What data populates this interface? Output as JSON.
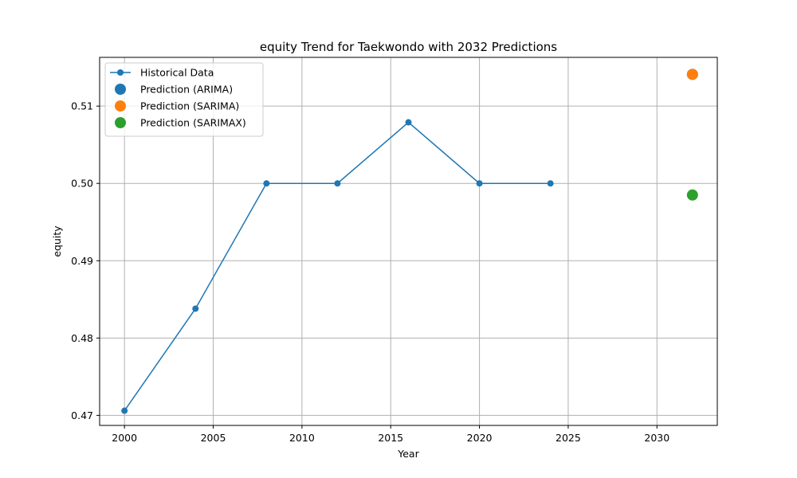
{
  "chart_data": {
    "type": "line",
    "title": "equity Trend for Taekwondo with 2032 Predictions",
    "xlabel": "Year",
    "ylabel": "equity",
    "xlim": [
      1998.6,
      2033.4
    ],
    "ylim": [
      0.4687,
      0.5163
    ],
    "x_ticks": [
      2000,
      2005,
      2010,
      2015,
      2020,
      2025,
      2030
    ],
    "y_ticks": [
      0.47,
      0.48,
      0.49,
      0.5,
      0.51
    ],
    "y_tick_labels": [
      "0.47",
      "0.48",
      "0.49",
      "0.50",
      "0.51"
    ],
    "grid": true,
    "legend_position": "upper-left",
    "series": [
      {
        "name": "Historical Data",
        "kind": "line-marker",
        "color": "#1f77b4",
        "x": [
          2000,
          2004,
          2008,
          2012,
          2016,
          2020,
          2024
        ],
        "y": [
          0.4706,
          0.4838,
          0.5,
          0.5,
          0.5079,
          0.5,
          0.5
        ]
      },
      {
        "name": "Prediction (ARIMA)",
        "kind": "point",
        "color": "#1f77b4",
        "x": [
          2032
        ],
        "y": [
          0.5141
        ]
      },
      {
        "name": "Prediction (SARIMA)",
        "kind": "point",
        "color": "#ff7f0e",
        "x": [
          2032
        ],
        "y": [
          0.5141
        ]
      },
      {
        "name": "Prediction (SARIMAX)",
        "kind": "point",
        "color": "#2ca02c",
        "x": [
          2032
        ],
        "y": [
          0.4985
        ]
      }
    ]
  }
}
